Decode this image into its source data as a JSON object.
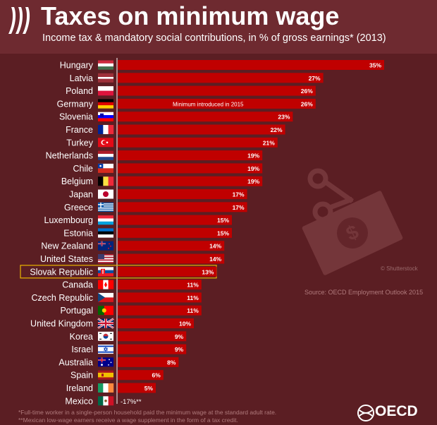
{
  "header": {
    "title": "Taxes on minimum wage",
    "subtitle": "Income tax & mandatory social contributions, in % of gross earnings* (2013)"
  },
  "source": "Source: OECD Employment Outlook 2015",
  "watermark": "© Shutterstock",
  "footnotes": [
    "*Full-time worker in a single-person household paid the minimum wage at the standard adult rate.",
    "**Mexican low-wage earners receive a wage supplement in the form of a tax credit."
  ],
  "brand": "OECD",
  "colors": {
    "background": "#5b1e23",
    "header": "#6e2a30",
    "bar": "#c00000",
    "highlight": "#e8b300",
    "text": "#ffffff"
  },
  "chart_data": {
    "type": "bar",
    "orientation": "horizontal",
    "categories": [
      "Hungary",
      "Latvia",
      "Poland",
      "Germany",
      "Slovenia",
      "France",
      "Turkey",
      "Netherlands",
      "Chile",
      "Belgium",
      "Japan",
      "Greece",
      "Luxembourg",
      "Estonia",
      "New Zealand",
      "United States",
      "Slovak Republic",
      "Canada",
      "Czech Republic",
      "Portugal",
      "United Kingdom",
      "Korea",
      "Israel",
      "Australia",
      "Spain",
      "Ireland",
      "Mexico"
    ],
    "values": [
      35,
      27,
      26,
      26,
      23,
      22,
      21,
      19,
      19,
      19,
      17,
      17,
      15,
      15,
      14,
      14,
      13,
      11,
      11,
      11,
      10,
      9,
      9,
      8,
      6,
      5,
      -17
    ],
    "value_labels": [
      "35%",
      "27%",
      "26%",
      "26%",
      "23%",
      "22%",
      "21%",
      "19%",
      "19%",
      "19%",
      "17%",
      "17%",
      "15%",
      "15%",
      "14%",
      "14%",
      "13%",
      "11%",
      "11%",
      "11%",
      "10%",
      "9%",
      "9%",
      "8%",
      "6%",
      "5%",
      "-17%**"
    ],
    "flags": [
      "hungary-flag",
      "latvia-flag",
      "poland-flag",
      "germany-flag",
      "slovenia-flag",
      "france-flag",
      "turkey-flag",
      "netherlands-flag",
      "chile-flag",
      "belgium-flag",
      "japan-flag",
      "greece-flag",
      "luxembourg-flag",
      "estonia-flag",
      "new-zealand-flag",
      "united-states-flag",
      "slovak-republic-flag",
      "canada-flag",
      "czech-republic-flag",
      "portugal-flag",
      "united-kingdom-flag",
      "korea-flag",
      "israel-flag",
      "australia-flag",
      "spain-flag",
      "ireland-flag",
      "mexico-flag"
    ],
    "annotation": {
      "category": "Germany",
      "text": "Minimum introduced in 2015"
    },
    "highlight": "Slovak Republic",
    "xlim": [
      0,
      35
    ]
  }
}
